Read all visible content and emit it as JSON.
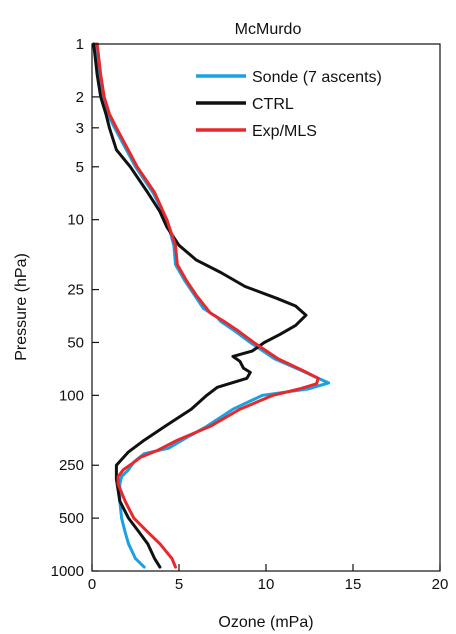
{
  "chart_data": {
    "type": "line",
    "title": "McMurdo",
    "xlabel": "Ozone (mPa)",
    "ylabel": "Pressure (hPa)",
    "xlim": [
      0,
      20
    ],
    "ylim": [
      1,
      1000
    ],
    "y_scale": "log",
    "y_inverted": true,
    "grid": false,
    "legend_position": "top-right",
    "x_ticks": [
      0,
      5,
      10,
      15,
      20
    ],
    "y_ticks": [
      1,
      2,
      3,
      5,
      10,
      25,
      50,
      100,
      250,
      500,
      1000
    ],
    "series": [
      {
        "name": "Sonde (7 ascents)",
        "color": "#1ba1e2",
        "points": [
          [
            0.2,
            1
          ],
          [
            0.4,
            1.5
          ],
          [
            0.6,
            2
          ],
          [
            0.9,
            2.5
          ],
          [
            1.3,
            3
          ],
          [
            2.5,
            5
          ],
          [
            3.5,
            7
          ],
          [
            4.3,
            10
          ],
          [
            4.7,
            14
          ],
          [
            4.8,
            18
          ],
          [
            5.3,
            22
          ],
          [
            5.9,
            27
          ],
          [
            6.4,
            32
          ],
          [
            7.2,
            36
          ],
          [
            7.4,
            38
          ],
          [
            8.2,
            43
          ],
          [
            9.1,
            50
          ],
          [
            10.5,
            62
          ],
          [
            12.0,
            72
          ],
          [
            13.0,
            80
          ],
          [
            13.6,
            85
          ],
          [
            12.4,
            92
          ],
          [
            9.8,
            100
          ],
          [
            8.1,
            120
          ],
          [
            6.6,
            150
          ],
          [
            5.4,
            175
          ],
          [
            4.4,
            200
          ],
          [
            3.0,
            215
          ],
          [
            2.4,
            240
          ],
          [
            2.1,
            265
          ],
          [
            1.7,
            290
          ],
          [
            1.6,
            320
          ],
          [
            1.6,
            400
          ],
          [
            1.7,
            500
          ],
          [
            1.9,
            600
          ],
          [
            2.1,
            700
          ],
          [
            2.5,
            850
          ],
          [
            3.0,
            950
          ]
        ]
      },
      {
        "name": "CTRL",
        "color": "#111111",
        "points": [
          [
            0.1,
            1
          ],
          [
            0.3,
            1.5
          ],
          [
            0.5,
            2
          ],
          [
            0.8,
            2.5
          ],
          [
            1.0,
            3
          ],
          [
            1.4,
            4
          ],
          [
            2.2,
            5
          ],
          [
            3.2,
            7
          ],
          [
            3.9,
            9
          ],
          [
            4.3,
            11
          ],
          [
            5.0,
            14
          ],
          [
            6.0,
            17
          ],
          [
            7.4,
            20
          ],
          [
            8.8,
            24
          ],
          [
            10.6,
            28
          ],
          [
            11.7,
            31
          ],
          [
            12.3,
            35
          ],
          [
            11.7,
            40
          ],
          [
            10.8,
            45
          ],
          [
            9.9,
            50
          ],
          [
            9.2,
            56
          ],
          [
            8.1,
            60
          ],
          [
            8.5,
            64
          ],
          [
            8.7,
            70
          ],
          [
            9.1,
            74
          ],
          [
            8.9,
            80
          ],
          [
            7.2,
            90
          ],
          [
            6.6,
            100
          ],
          [
            5.7,
            120
          ],
          [
            4.2,
            150
          ],
          [
            3.0,
            180
          ],
          [
            2.1,
            210
          ],
          [
            1.4,
            250
          ],
          [
            1.4,
            300
          ],
          [
            1.6,
            400
          ],
          [
            2.1,
            500
          ],
          [
            2.7,
            600
          ],
          [
            3.2,
            700
          ],
          [
            3.6,
            850
          ],
          [
            3.9,
            950
          ]
        ]
      },
      {
        "name": "Exp/MLS",
        "color": "#e8282a",
        "points": [
          [
            0.3,
            1
          ],
          [
            0.5,
            1.5
          ],
          [
            0.7,
            2
          ],
          [
            1.0,
            2.5
          ],
          [
            1.4,
            3
          ],
          [
            2.6,
            5
          ],
          [
            3.6,
            7
          ],
          [
            4.3,
            10
          ],
          [
            4.8,
            14
          ],
          [
            4.9,
            18
          ],
          [
            5.4,
            22
          ],
          [
            6.0,
            27
          ],
          [
            6.8,
            34
          ],
          [
            7.6,
            38
          ],
          [
            8.4,
            43
          ],
          [
            9.3,
            50
          ],
          [
            10.7,
            62
          ],
          [
            12.1,
            72
          ],
          [
            13.0,
            80
          ],
          [
            12.9,
            86
          ],
          [
            11.9,
            92
          ],
          [
            10.4,
            100
          ],
          [
            8.5,
            120
          ],
          [
            6.8,
            150
          ],
          [
            4.9,
            180
          ],
          [
            3.8,
            205
          ],
          [
            2.8,
            225
          ],
          [
            2.3,
            245
          ],
          [
            1.8,
            265
          ],
          [
            1.5,
            290
          ],
          [
            1.5,
            320
          ],
          [
            1.9,
            400
          ],
          [
            2.4,
            500
          ],
          [
            3.2,
            600
          ],
          [
            3.9,
            700
          ],
          [
            4.6,
            850
          ],
          [
            4.8,
            950
          ]
        ]
      }
    ]
  }
}
